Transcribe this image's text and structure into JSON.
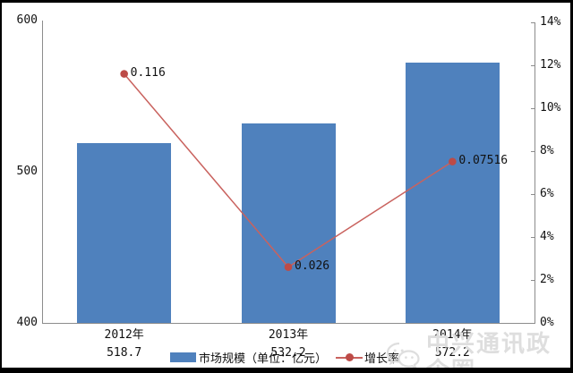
{
  "watermark": {
    "text": "中兴通讯政企圈",
    "icon": "wechat-icon"
  },
  "chart_data": {
    "type": "combo",
    "title": "",
    "categories": [
      "2012年",
      "2013年",
      "2014年"
    ],
    "series": [
      {
        "name": "市场规模（单位：亿元）",
        "type": "bar",
        "axis": "left",
        "color": "#4f81bd",
        "values": [
          518.7,
          532.2,
          572.2
        ],
        "value_labels": [
          "518.7",
          "532.2",
          "572.2"
        ]
      },
      {
        "name": "增长率",
        "type": "line",
        "axis": "right",
        "color": "#c9625e",
        "marker_color": "#bd4b47",
        "values": [
          0.116,
          0.026,
          0.07516
        ],
        "point_labels": [
          "0.116",
          "0.026",
          "0.07516"
        ]
      }
    ],
    "left_axis": {
      "min": 400,
      "max": 600,
      "ticks": [
        {
          "label": "600",
          "value": 600
        },
        {
          "label": "500",
          "value": 500
        },
        {
          "label": "400",
          "value": 400
        }
      ]
    },
    "right_axis": {
      "min": 0,
      "max": 0.14,
      "ticks": [
        {
          "label": "14%",
          "value": 0.14
        },
        {
          "label": "12%",
          "value": 0.12
        },
        {
          "label": "10%",
          "value": 0.1
        },
        {
          "label": "8%",
          "value": 0.08
        },
        {
          "label": "6%",
          "value": 0.06
        },
        {
          "label": "4%",
          "value": 0.04
        },
        {
          "label": "2%",
          "value": 0.02
        },
        {
          "label": "0%",
          "value": 0
        }
      ]
    },
    "grid": false,
    "legend_position": "bottom"
  }
}
